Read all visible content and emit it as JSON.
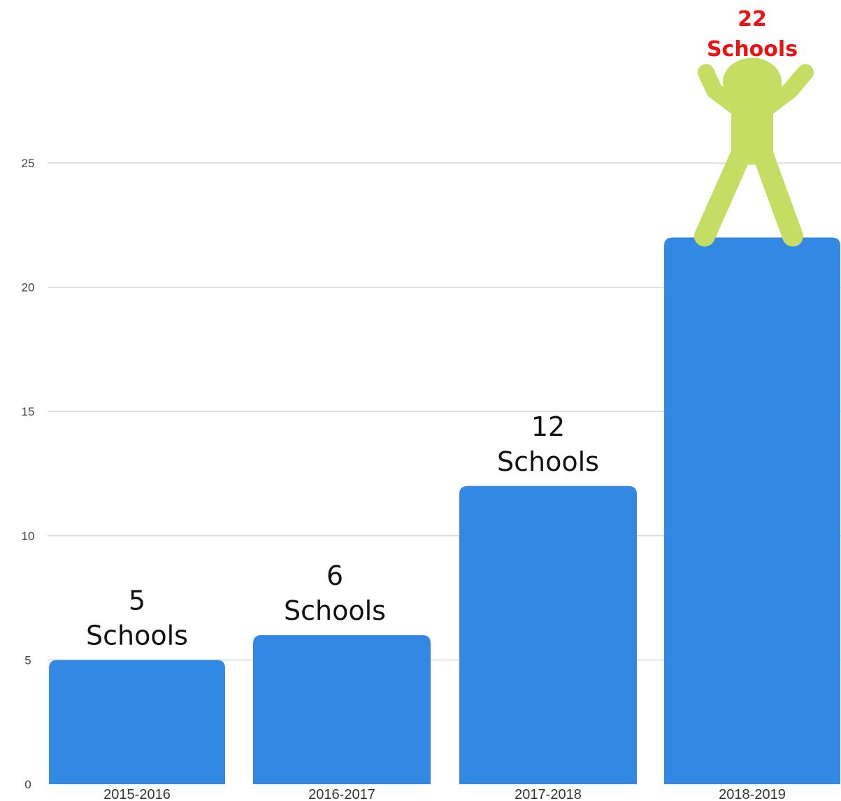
{
  "chart_data": {
    "type": "bar",
    "categories": [
      "2015-2016",
      "2016-2017",
      "2017-2018",
      "2018-2019"
    ],
    "values": [
      5,
      6,
      12,
      22
    ],
    "data_labels": [
      {
        "number": "5",
        "unit": "Schools"
      },
      {
        "number": "6",
        "unit": "Schools"
      },
      {
        "number": "12",
        "unit": "Schools"
      },
      {
        "number": "22",
        "unit": "Schools"
      }
    ],
    "highlight_index": 3,
    "y_ticks": [
      0,
      5,
      10,
      15,
      20,
      25
    ],
    "ylim": [
      0,
      31.5
    ],
    "grid": true,
    "title": "",
    "xlabel": "",
    "ylabel": "",
    "colors": {
      "bar": "#3388e3",
      "highlight_label": "#ee1111",
      "figure": "#c5dd63",
      "grid": "#d9d9d9"
    },
    "decoration": "celebrating-person-icon"
  }
}
